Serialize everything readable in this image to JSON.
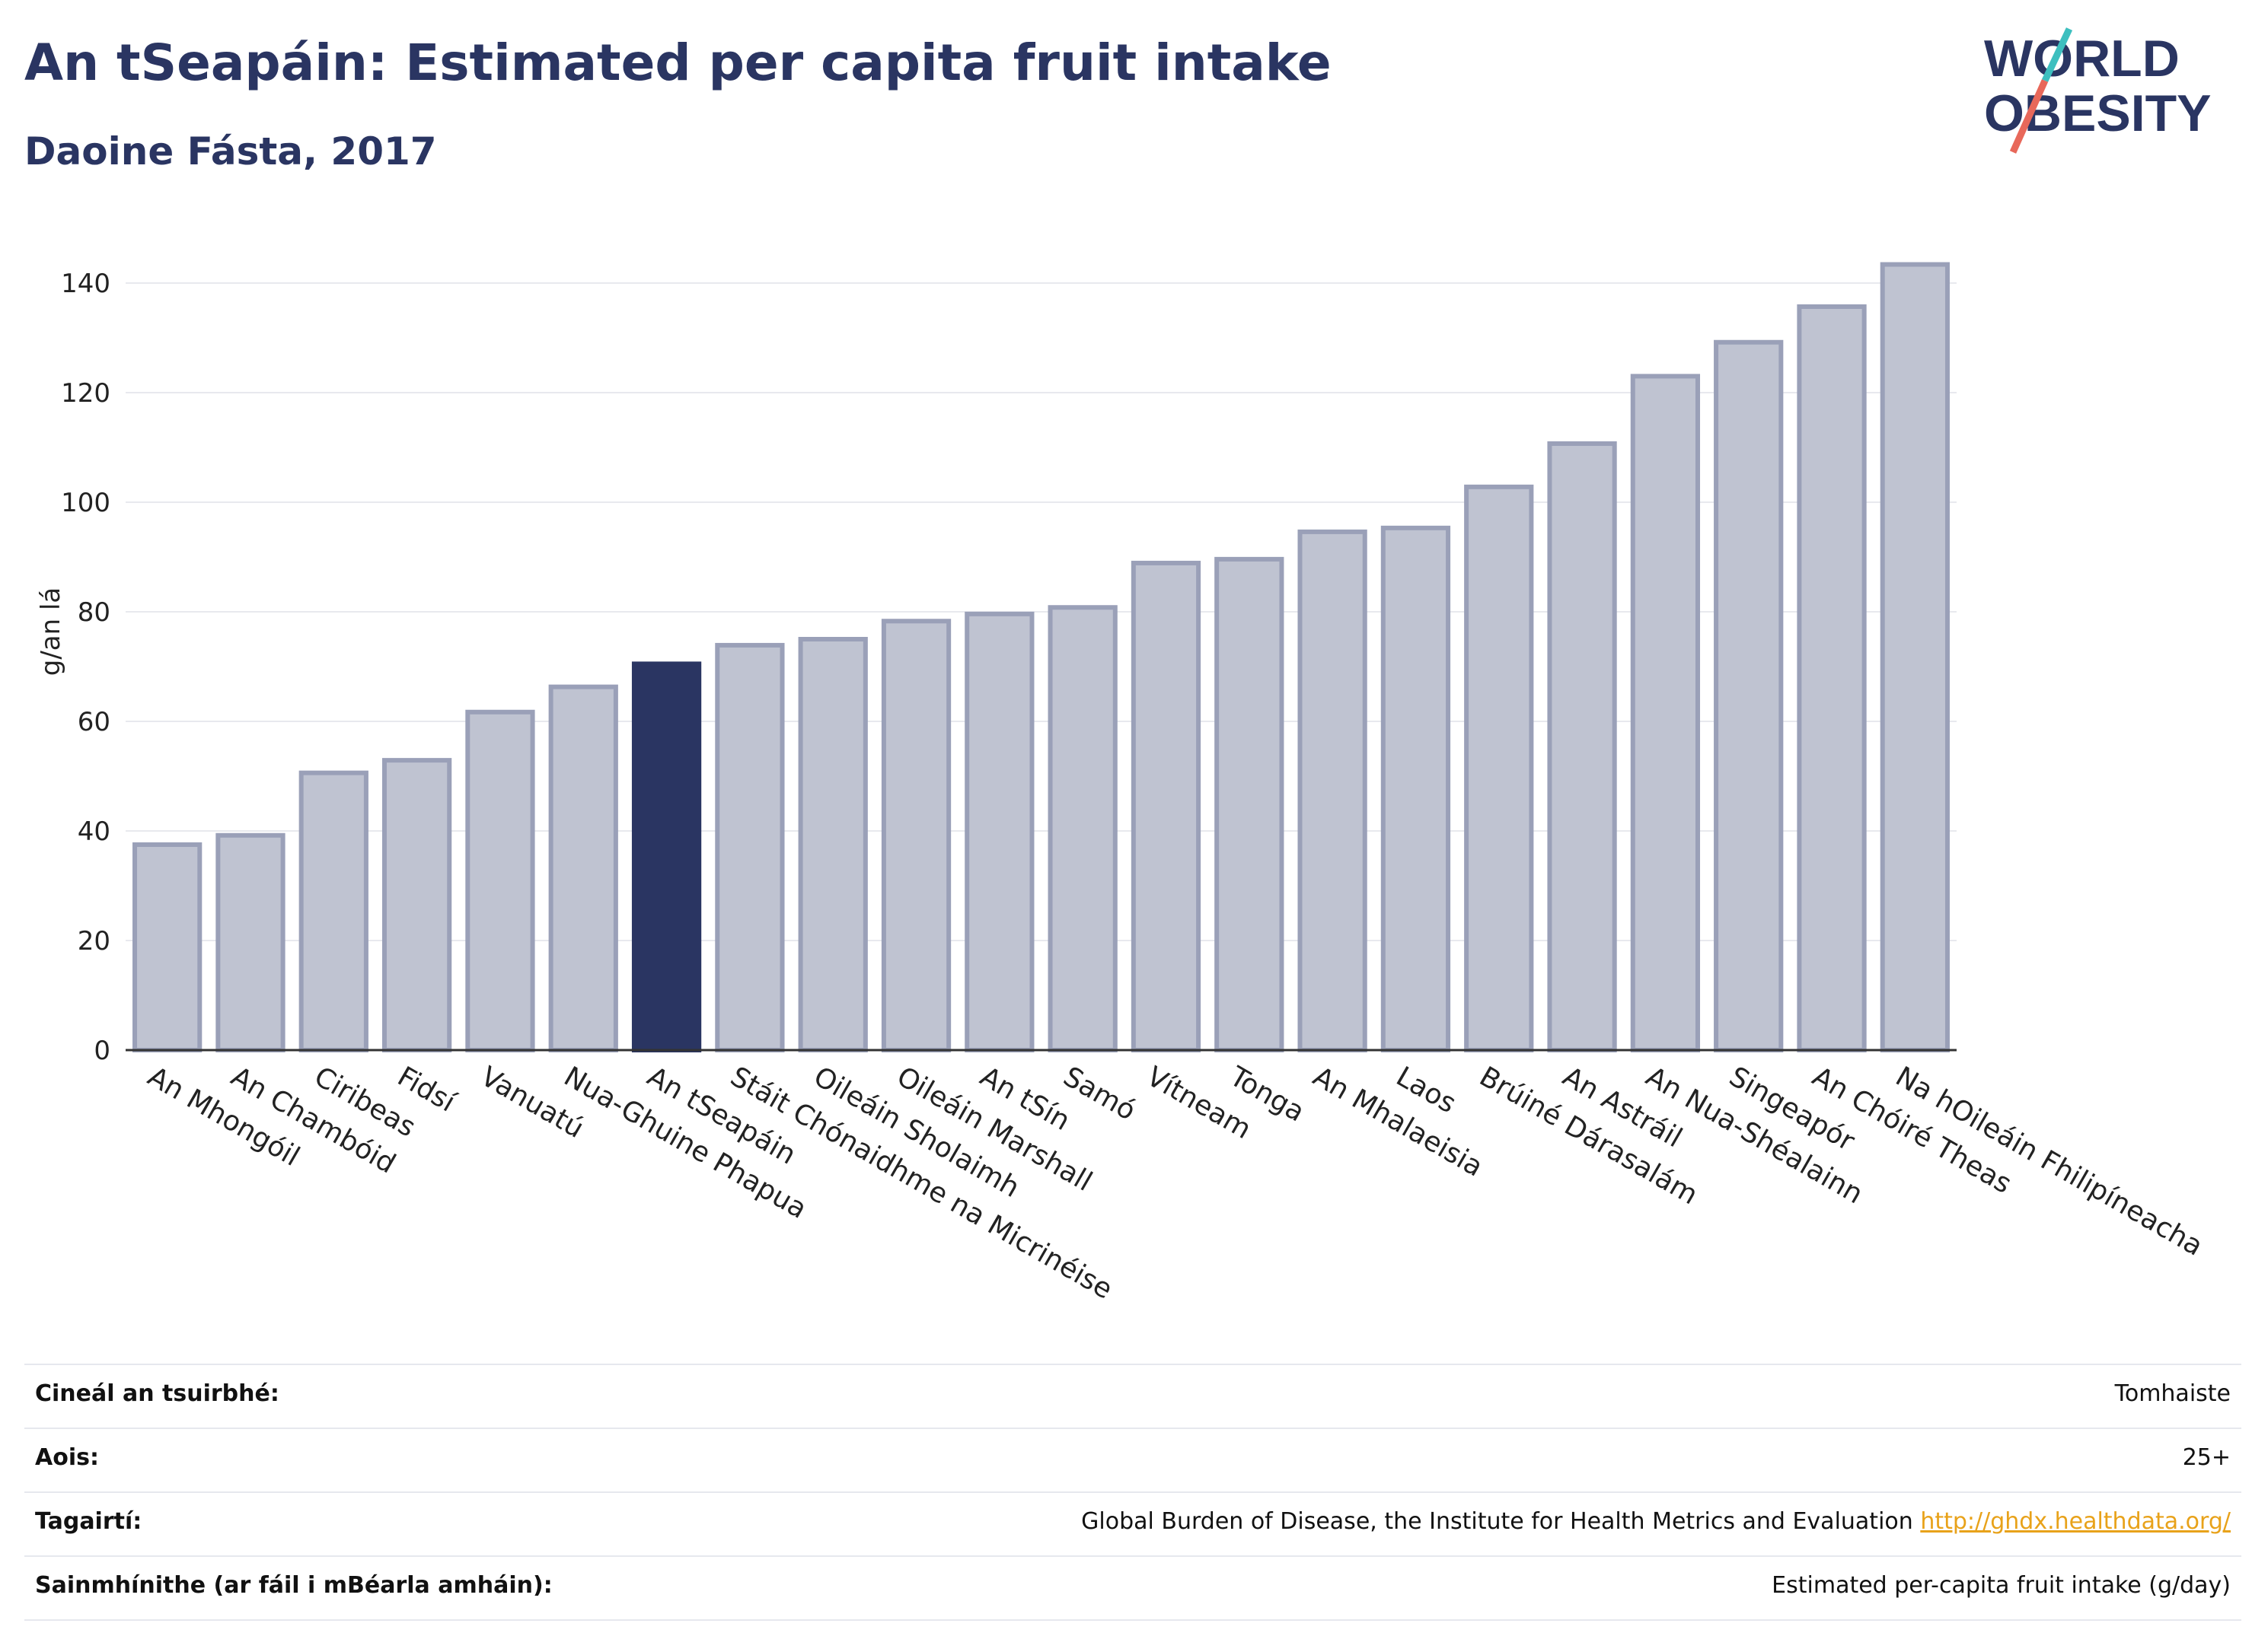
{
  "header": {
    "title": "An tSeapáin: Estimated per capita fruit intake",
    "subtitle": "Daoine Fásta, 2017"
  },
  "logo": {
    "line1": "WORLD",
    "line2": "OBESITY",
    "accent_colors": [
      "#3dbfbf",
      "#e8685a"
    ]
  },
  "chart_data": {
    "type": "bar",
    "title": "An tSeapáin: Estimated per capita fruit intake",
    "subtitle": "Daoine Fásta, 2017",
    "xlabel": "",
    "ylabel": "g/an lá",
    "ylim": [
      0,
      150
    ],
    "yticks": [
      0,
      20,
      40,
      60,
      80,
      100,
      120,
      140
    ],
    "grid": true,
    "legend": "none",
    "highlight_category": "An tSeapáin",
    "colors": {
      "bar": "#bfc3d1",
      "bar_border": "#9aa0b8",
      "highlight": "#2a3562"
    },
    "categories": [
      "An Mhongóil",
      "An Chambóid",
      "Ciribeas",
      "Fidsí",
      "Vanuatú",
      "Nua-Ghuine Phapua",
      "An tSeapáin",
      "Stáit Chónaidhme na Micrinéise",
      "Oileáin Sholaimh",
      "Oileáin Marshall",
      "An tSín",
      "Samó",
      "Vítneam",
      "Tonga",
      "An Mhalaeisia",
      "Laos",
      "Brúiné Dárasalám",
      "An Astráil",
      "An Nua-Shéalainn",
      "Singeapór",
      "An Chóiré Theas",
      "Na hOileáin Fhilipíneacha"
    ],
    "values": [
      37.5,
      39.2,
      50.6,
      52.9,
      61.7,
      66.3,
      70.5,
      73.9,
      75.0,
      78.3,
      79.6,
      80.8,
      88.9,
      89.6,
      94.6,
      95.3,
      102.8,
      110.7,
      123.0,
      129.2,
      135.7,
      143.4
    ]
  },
  "meta": [
    {
      "label": "Cineál an tsuirbhé:",
      "value": "Tomhaiste",
      "link": ""
    },
    {
      "label": "Aois:",
      "value": "25+",
      "link": ""
    },
    {
      "label": "Tagairtí:",
      "value": "Global Burden of Disease, the Institute for Health Metrics and Evaluation ",
      "link": "http://ghdx.healthdata.org/"
    },
    {
      "label": "Sainmhínithe (ar fáil i mBéarla amháin):",
      "value": "Estimated per-capita fruit intake (g/day)",
      "link": ""
    }
  ]
}
